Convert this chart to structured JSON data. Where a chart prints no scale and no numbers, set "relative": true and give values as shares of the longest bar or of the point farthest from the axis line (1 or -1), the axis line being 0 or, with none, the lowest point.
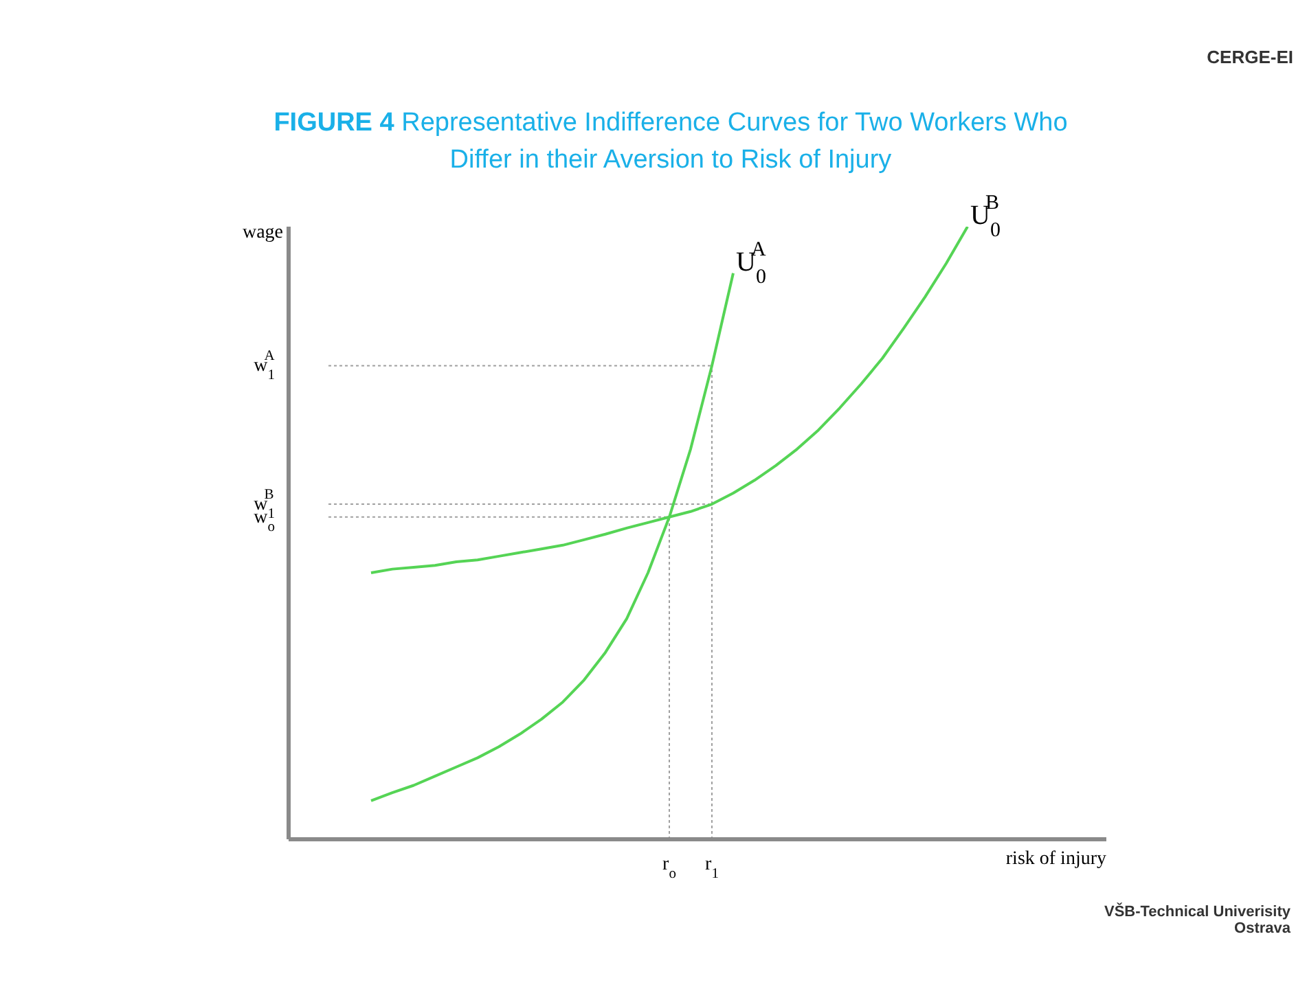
{
  "chart_data": {
    "type": "line",
    "title": "FIGURE 4  Representative Indifference Curves for Two Workers Who Differ in their Aversion to Risk of Injury",
    "xlabel": "risk of injury",
    "ylabel": "wage",
    "relative": true,
    "grid": false,
    "legend": false,
    "marker": "none",
    "line_style": "solid",
    "categories": [
      null,
      null,
      null,
      null,
      null,
      null,
      null,
      null,
      null,
      null,
      null,
      null,
      null,
      null,
      null,
      null,
      "r$_{o}$",
      null,
      "r$_{1}$",
      null,
      null,
      null,
      null,
      null,
      null,
      null,
      null,
      null,
      null,
      null,
      null,
      null,
      null,
      null,
      null,
      null,
      null
    ],
    "series": [
      {
        "name": "U$_{0}$$^{A}$",
        "color": "#55d455",
        "values": [
          null,
          null,
          0.063,
          0.076,
          0.088,
          0.103,
          0.118,
          0.133,
          0.151,
          0.172,
          0.196,
          0.224,
          0.26,
          0.305,
          0.36,
          0.435,
          0.526,
          0.637,
          0.773,
          0.924,
          null,
          null,
          null,
          null,
          null,
          null,
          null,
          null,
          null,
          null,
          null,
          null,
          null,
          null,
          null,
          null,
          null
        ]
      },
      {
        "name": "U$_{0}$$^{B}$",
        "color": "#55d455",
        "values": [
          null,
          null,
          0.435,
          0.441,
          0.444,
          0.447,
          0.453,
          0.456,
          0.462,
          0.468,
          0.474,
          0.48,
          0.489,
          0.498,
          0.508,
          0.517,
          0.526,
          0.535,
          0.547,
          0.565,
          0.586,
          0.61,
          0.637,
          0.668,
          0.704,
          0.743,
          0.785,
          0.834,
          0.885,
          0.94,
          1,
          null,
          null,
          null,
          null,
          null,
          null
        ]
      }
    ],
    "ref_lines": [
      {
        "axis": "y",
        "value": 0.526,
        "label": "w$_{o}$",
        "line_style": "dotted",
        "color": "#a0a0a0"
      },
      {
        "axis": "y",
        "value": 0.547,
        "label": "w$_{1}$$^{B}$",
        "line_style": "dotted",
        "color": "#a0a0a0"
      },
      {
        "axis": "y",
        "value": 0.773,
        "label": "w$_{1}$$^{A}$",
        "line_style": "dotted",
        "color": "#a0a0a0"
      },
      {
        "axis": "x",
        "value": "r$_{o}$",
        "line_style": "dotted",
        "color": "#a0a0a0"
      },
      {
        "axis": "x",
        "value": "r$_{1}$",
        "line_style": "dotted",
        "color": "#a0a0a0"
      }
    ],
    "annotations": [
      "CERGE-EI",
      "VŠB-Technical Univerisity Ostrava"
    ]
  }
}
